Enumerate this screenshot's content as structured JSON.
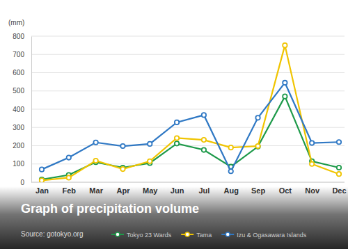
{
  "chart_data": {
    "type": "line",
    "title": "Graph of precipitation volume",
    "y_label": "(mm)",
    "annotations": [
      "Source: gotokyo.org"
    ],
    "categories": [
      "Jan",
      "Feb",
      "Mar",
      "Apr",
      "May",
      "Jun",
      "Jul",
      "Aug",
      "Sep",
      "Oct",
      "Nov",
      "Dec"
    ],
    "series": [
      {
        "name": "Tokyo 23 Wards",
        "color": "#1e9a4a",
        "marker": "circle",
        "values": [
          15,
          40,
          110,
          80,
          105,
          212,
          177,
          85,
          195,
          470,
          115,
          80
        ]
      },
      {
        "name": "Tama",
        "color": "#f0c400",
        "marker": "circle",
        "values": [
          10,
          25,
          118,
          72,
          115,
          242,
          232,
          190,
          198,
          750,
          100,
          45
        ]
      },
      {
        "name": "Izu & Ogasawara Islands",
        "color": "#2f78c4",
        "marker": "circle",
        "values": [
          70,
          135,
          218,
          198,
          210,
          328,
          368,
          60,
          353,
          545,
          215,
          220
        ]
      }
    ],
    "ylim": [
      0,
      800
    ],
    "yticks": [
      0,
      100,
      200,
      300,
      400,
      500,
      600,
      700,
      800
    ],
    "grid": true,
    "legend": "bottom"
  }
}
